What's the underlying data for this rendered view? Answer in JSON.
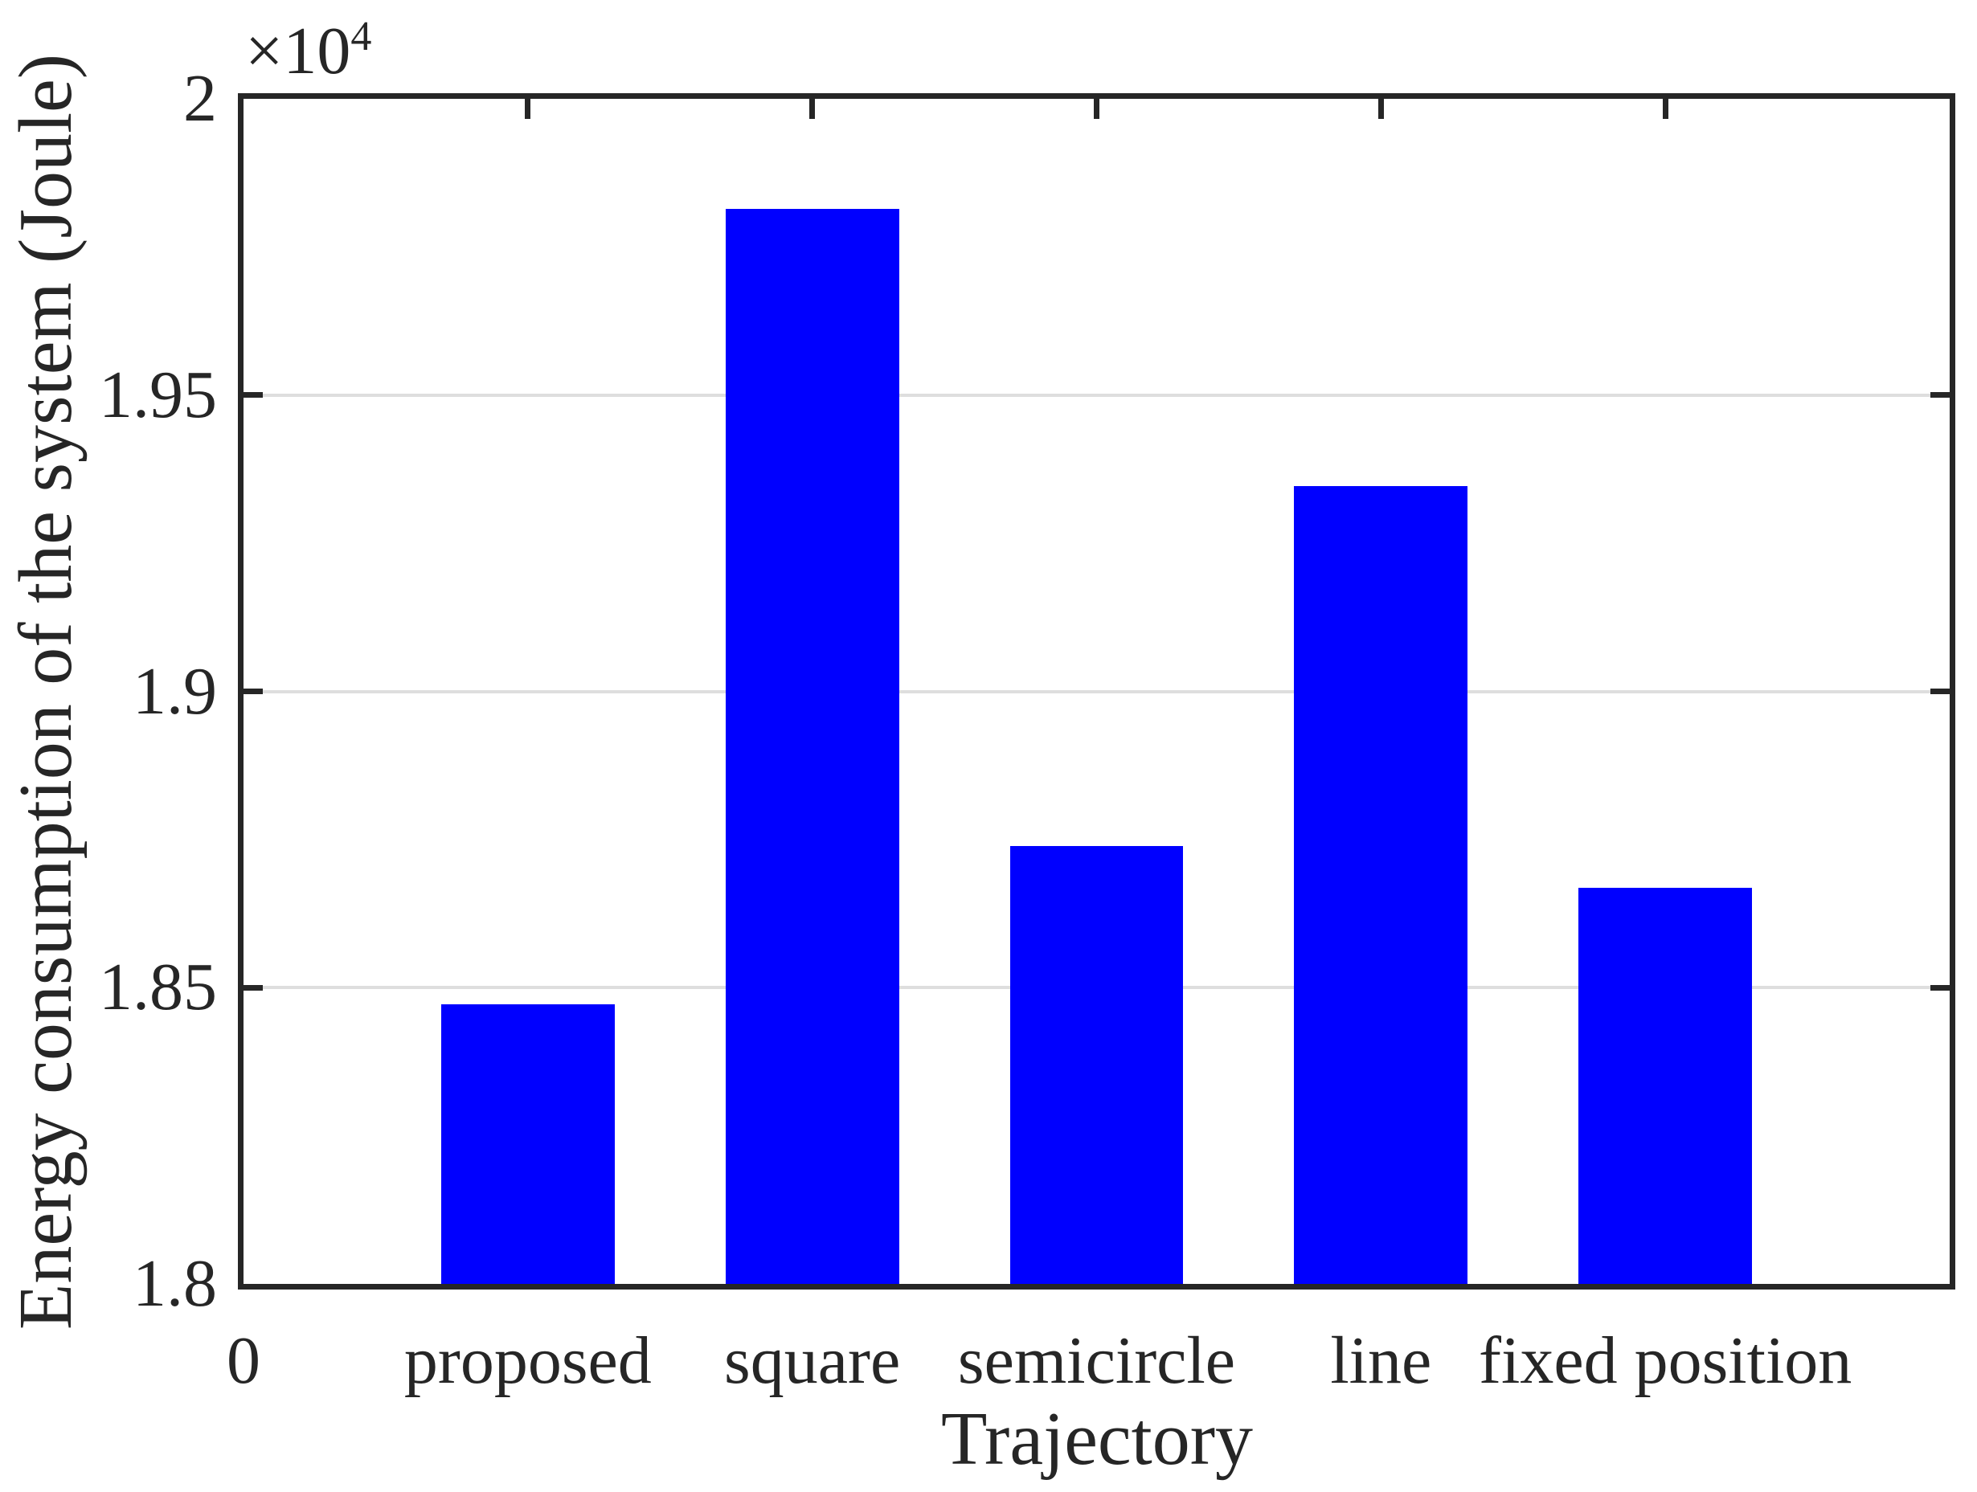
{
  "chart_data": {
    "type": "bar",
    "title": "",
    "xlabel": "Trajectory",
    "ylabel": "Energy consumption of the system (Joule)",
    "y_offset_label": {
      "base": "×10",
      "exponent": "4"
    },
    "categories": [
      "proposed",
      "square",
      "semicircle",
      "line",
      "fixed position"
    ],
    "x_positions": [
      1,
      2,
      3,
      4,
      5
    ],
    "values": [
      18472,
      19814,
      18739,
      19346,
      18669
    ],
    "xlim": [
      0,
      6
    ],
    "ylim": [
      18000,
      20000
    ],
    "xticks": [
      {
        "value": 0,
        "label": "0"
      },
      {
        "value": 1,
        "label": "proposed"
      },
      {
        "value": 2,
        "label": "square"
      },
      {
        "value": 3,
        "label": "semicircle"
      },
      {
        "value": 4,
        "label": "line"
      },
      {
        "value": 5,
        "label": "fixed position"
      }
    ],
    "yticks": [
      {
        "value": 18000,
        "label": "1.8"
      },
      {
        "value": 18500,
        "label": "1.85"
      },
      {
        "value": 19000,
        "label": "1.9"
      },
      {
        "value": 19500,
        "label": "1.95"
      },
      {
        "value": 20000,
        "label": "2"
      }
    ],
    "bar_width_data_units": 0.61,
    "grid": true,
    "legend": null,
    "colors": {
      "bar": "#0000FF",
      "axis": "#262626",
      "grid": "#DEDEDE",
      "text": "#262626",
      "background": "#FFFFFF"
    }
  }
}
